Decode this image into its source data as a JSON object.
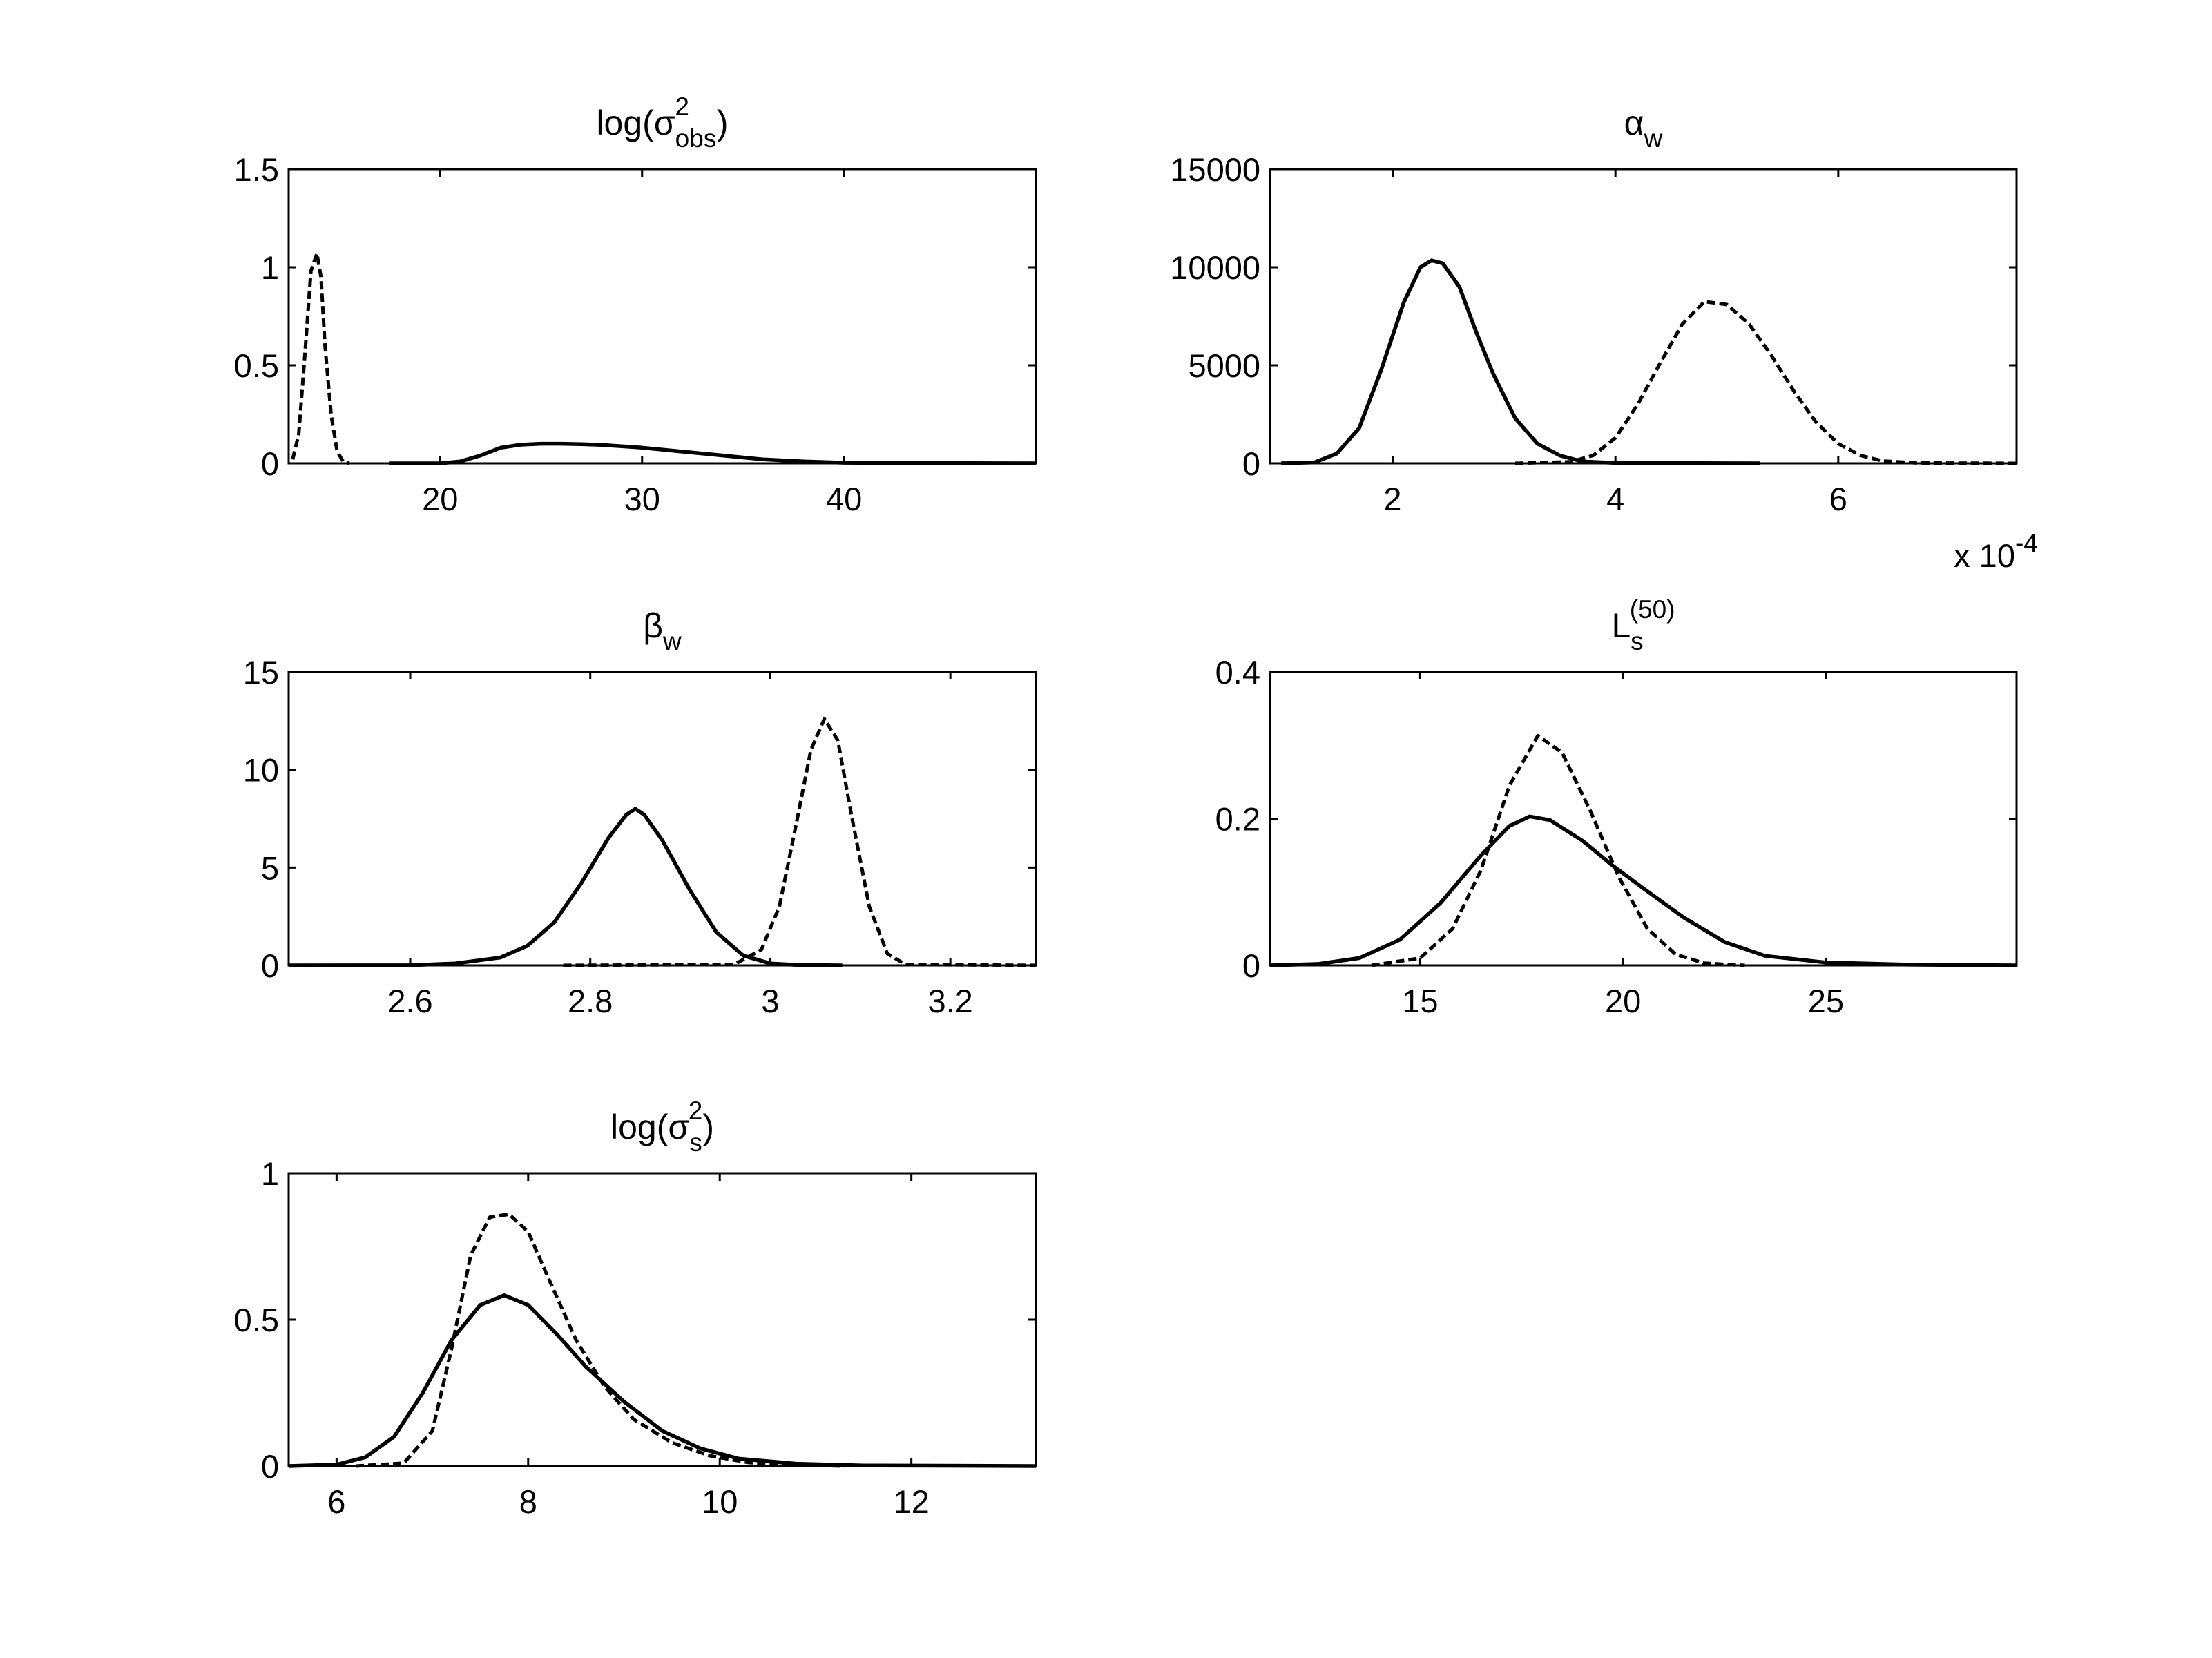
{
  "figure": {
    "background": "#ffffff",
    "line_color": "#000000"
  },
  "chart_data": [
    {
      "id": "sigma_obs",
      "type": "line",
      "title": {
        "main": "log(σ",
        "sup": "2",
        "sub": "obs",
        "close": ")"
      },
      "xlim": [
        12.5,
        49.5
      ],
      "ylim": [
        0,
        1.5
      ],
      "xticks": [
        20,
        30,
        40
      ],
      "xtick_labels": [
        "20",
        "30",
        "40"
      ],
      "yticks": [
        0,
        0.5,
        1,
        1.5
      ],
      "ytick_labels": [
        "0",
        "0.5",
        "1",
        "1.5"
      ],
      "series": [
        {
          "style": "dashed",
          "x": [
            12.7,
            13.0,
            13.3,
            13.6,
            13.9,
            14.1,
            14.3,
            14.6,
            14.9,
            15.2,
            15.5
          ],
          "y": [
            0.02,
            0.15,
            0.55,
            0.98,
            1.07,
            0.95,
            0.6,
            0.25,
            0.06,
            0.01,
            0
          ]
        },
        {
          "style": "solid",
          "x": [
            17.5,
            20,
            21,
            22,
            23,
            24,
            25,
            26,
            27,
            28,
            30,
            32,
            34,
            36,
            38,
            40,
            44,
            49.5
          ],
          "y": [
            0,
            0,
            0.01,
            0.04,
            0.08,
            0.095,
            0.1,
            0.1,
            0.098,
            0.094,
            0.08,
            0.06,
            0.04,
            0.02,
            0.01,
            0.003,
            0.001,
            0
          ]
        }
      ]
    },
    {
      "id": "alpha_w",
      "type": "line",
      "title": {
        "main": "α",
        "sub": "w"
      },
      "x_multiplier": "x 10",
      "x_multiplier_exp": "-4",
      "xlim": [
        0.9,
        7.6
      ],
      "ylim": [
        0,
        15000
      ],
      "xticks": [
        2,
        4,
        6
      ],
      "xtick_labels": [
        "2",
        "4",
        "6"
      ],
      "yticks": [
        0,
        5000,
        10000,
        15000
      ],
      "ytick_labels": [
        "0",
        "5000",
        "10000",
        "15000"
      ],
      "series": [
        {
          "style": "solid",
          "x": [
            1.0,
            1.3,
            1.5,
            1.7,
            1.9,
            2.1,
            2.25,
            2.35,
            2.45,
            2.6,
            2.75,
            2.9,
            3.1,
            3.3,
            3.5,
            3.7,
            4.0,
            5.3
          ],
          "y": [
            0,
            50,
            500,
            1800,
            4800,
            8200,
            10000,
            10350,
            10200,
            9000,
            6700,
            4600,
            2300,
            1000,
            400,
            100,
            20,
            0
          ]
        },
        {
          "style": "dashed",
          "x": [
            3.1,
            3.6,
            3.8,
            4.0,
            4.2,
            4.4,
            4.6,
            4.8,
            5.0,
            5.2,
            5.4,
            5.6,
            5.8,
            6.0,
            6.2,
            6.4,
            6.7,
            7.6
          ],
          "y": [
            0,
            80,
            400,
            1300,
            3000,
            5100,
            7100,
            8250,
            8100,
            7100,
            5500,
            3700,
            2100,
            1000,
            400,
            120,
            20,
            0
          ]
        }
      ]
    },
    {
      "id": "beta_w",
      "type": "line",
      "title": {
        "main": "β",
        "sub": "w"
      },
      "xlim": [
        2.465,
        3.295
      ],
      "ylim": [
        0,
        15
      ],
      "xticks": [
        2.6,
        2.8,
        3,
        3.2
      ],
      "xtick_labels": [
        "2.6",
        "2.8",
        "3",
        "3.2"
      ],
      "yticks": [
        0,
        5,
        10,
        15
      ],
      "ytick_labels": [
        "0",
        "5",
        "10",
        "15"
      ],
      "series": [
        {
          "style": "solid",
          "x": [
            2.465,
            2.6,
            2.65,
            2.7,
            2.73,
            2.76,
            2.79,
            2.82,
            2.84,
            2.85,
            2.86,
            2.88,
            2.91,
            2.94,
            2.97,
            3.0,
            3.03,
            3.08
          ],
          "y": [
            0,
            0.01,
            0.1,
            0.4,
            1.0,
            2.2,
            4.2,
            6.5,
            7.7,
            8.0,
            7.7,
            6.4,
            3.9,
            1.7,
            0.5,
            0.1,
            0.02,
            0
          ]
        },
        {
          "style": "dashed",
          "x": [
            2.77,
            2.96,
            2.99,
            3.01,
            3.03,
            3.045,
            3.06,
            3.075,
            3.09,
            3.11,
            3.13,
            3.15,
            3.295
          ],
          "y": [
            0,
            0.05,
            0.8,
            3.0,
            7.5,
            11.0,
            12.6,
            11.5,
            7.7,
            3.0,
            0.6,
            0.05,
            0
          ]
        }
      ]
    },
    {
      "id": "Ls50",
      "type": "line",
      "title": {
        "main": "L",
        "sub": "s",
        "sup": "(50)"
      },
      "xlim": [
        11.3,
        29.7
      ],
      "ylim": [
        0,
        0.4
      ],
      "xticks": [
        15,
        20,
        25
      ],
      "xtick_labels": [
        "15",
        "20",
        "25"
      ],
      "yticks": [
        0,
        0.2,
        0.4
      ],
      "yticks_labels_note": "",
      "ytick_labels": [
        "0",
        "0.2",
        "0.4"
      ],
      "series": [
        {
          "style": "solid",
          "x": [
            11.3,
            12.5,
            13.5,
            14.5,
            15.5,
            16.5,
            17.2,
            17.7,
            18.2,
            19.0,
            19.7,
            20.5,
            21.5,
            22.5,
            23.5,
            25,
            27,
            29.7
          ],
          "y": [
            0,
            0.002,
            0.01,
            0.035,
            0.085,
            0.15,
            0.19,
            0.203,
            0.198,
            0.17,
            0.138,
            0.105,
            0.065,
            0.032,
            0.013,
            0.004,
            0.001,
            0
          ]
        },
        {
          "style": "dashed",
          "x": [
            13.8,
            15.0,
            15.8,
            16.5,
            17.2,
            17.9,
            18.5,
            19.2,
            19.9,
            20.6,
            21.3,
            22.0,
            23.0
          ],
          "y": [
            0,
            0.01,
            0.05,
            0.13,
            0.245,
            0.313,
            0.29,
            0.21,
            0.12,
            0.05,
            0.015,
            0.003,
            0
          ]
        }
      ]
    },
    {
      "id": "sigma_s",
      "type": "line",
      "title": {
        "main": "log(σ",
        "sup": "2",
        "sub": "s",
        "close": ")"
      },
      "xlim": [
        5.5,
        13.3
      ],
      "ylim": [
        0,
        1
      ],
      "xticks": [
        6,
        8,
        10,
        12
      ],
      "xtick_labels": [
        "6",
        "8",
        "10",
        "12"
      ],
      "yticks": [
        0,
        0.5,
        1
      ],
      "ytick_labels": [
        "0",
        "0.5",
        "1"
      ],
      "series": [
        {
          "style": "solid",
          "x": [
            5.5,
            6.0,
            6.3,
            6.6,
            6.9,
            7.2,
            7.5,
            7.75,
            8.0,
            8.3,
            8.6,
            9.0,
            9.4,
            9.8,
            10.2,
            10.8,
            11.5,
            13.3
          ],
          "y": [
            0,
            0.005,
            0.03,
            0.1,
            0.25,
            0.43,
            0.55,
            0.583,
            0.55,
            0.45,
            0.34,
            0.22,
            0.12,
            0.06,
            0.025,
            0.008,
            0.002,
            0
          ]
        },
        {
          "style": "dashed",
          "x": [
            6.2,
            6.7,
            7.0,
            7.2,
            7.4,
            7.6,
            7.8,
            8.0,
            8.2,
            8.5,
            8.8,
            9.1,
            9.5,
            9.9,
            10.3,
            10.8,
            11.3
          ],
          "y": [
            0,
            0.01,
            0.12,
            0.4,
            0.72,
            0.85,
            0.86,
            0.8,
            0.65,
            0.43,
            0.27,
            0.16,
            0.08,
            0.035,
            0.012,
            0.003,
            0
          ]
        }
      ]
    }
  ]
}
